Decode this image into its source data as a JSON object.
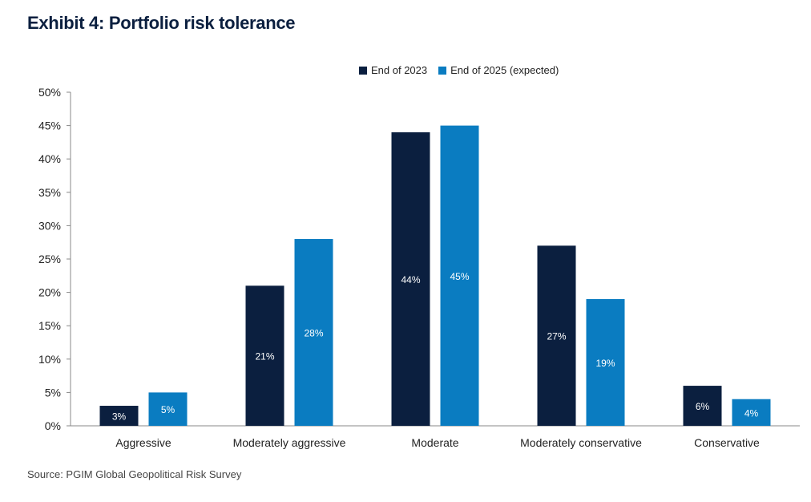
{
  "title": "Exhibit 4: Portfolio risk tolerance",
  "source": "Source: PGIM Global Geopolitical Risk Survey",
  "colors": {
    "series1": "#0b1f3f",
    "series2": "#0a7cc1",
    "axis": "#888888"
  },
  "chart_data": {
    "type": "bar",
    "categories": [
      "Aggressive",
      "Moderately aggressive",
      "Moderate",
      "Moderately conservative",
      "Conservative"
    ],
    "series": [
      {
        "name": "End of 2023",
        "values": [
          3,
          21,
          44,
          27,
          6
        ],
        "labels": [
          "3%",
          "21%",
          "44%",
          "27%",
          "6%"
        ]
      },
      {
        "name": "End of 2025 (expected)",
        "values": [
          5,
          28,
          45,
          19,
          4
        ],
        "labels": [
          "5%",
          "28%",
          "45%",
          "19%",
          "4%"
        ]
      }
    ],
    "ylim": [
      0,
      50
    ],
    "yticks": [
      0,
      5,
      10,
      15,
      20,
      25,
      30,
      35,
      40,
      45,
      50
    ],
    "ytick_labels": [
      "0%",
      "5%",
      "10%",
      "15%",
      "20%",
      "25%",
      "30%",
      "35%",
      "40%",
      "45%",
      "50%"
    ],
    "legend_position": "top-center",
    "grid": false
  }
}
